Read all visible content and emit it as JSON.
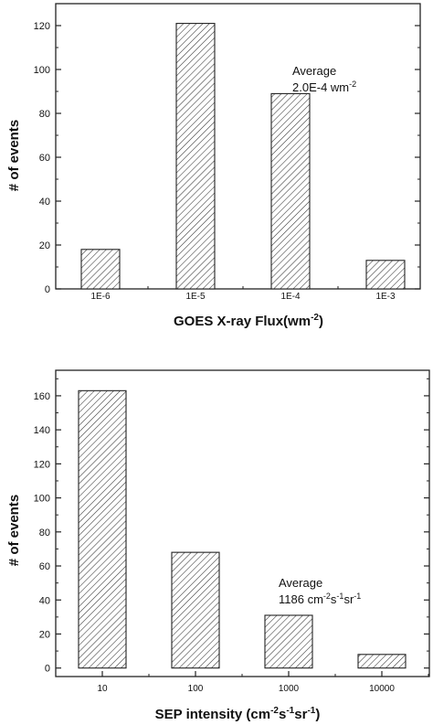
{
  "chart_data": [
    {
      "type": "bar",
      "categories": [
        "1E-6",
        "1E-5",
        "1E-4",
        "1E-3"
      ],
      "values": [
        18,
        121,
        89,
        13
      ],
      "xlabel": "GOES X-ray Flux(wm",
      "xlabel_sup": "-2",
      "xlabel_end": ")",
      "ylabel": "# of events",
      "ylim": [
        0,
        130
      ],
      "yticks": [
        0,
        20,
        40,
        60,
        80,
        100,
        120
      ],
      "annotation": {
        "line1": "Average",
        "line2_base": "2.0E-4 wm",
        "line2_sup": "-2"
      },
      "bar_fill": "diagonal-hatch",
      "grid": false
    },
    {
      "type": "bar",
      "categories": [
        "10",
        "100",
        "1000",
        "10000"
      ],
      "values": [
        163,
        68,
        31,
        8
      ],
      "xlabel": "SEP intensity (cm",
      "xlabel_sup1": "-2",
      "xlabel_mid1": "s",
      "xlabel_sup2": "-1",
      "xlabel_mid2": "sr",
      "xlabel_sup3": "-1",
      "xlabel_end": ")",
      "ylabel": "# of events",
      "ylim": [
        -5,
        175
      ],
      "yticks": [
        0,
        20,
        40,
        60,
        80,
        100,
        120,
        140,
        160
      ],
      "annotation": {
        "line1": "Average",
        "line2_base": "1186 cm",
        "line2_sup1": "-2",
        "line2_mid1": "s",
        "line2_sup2": "-1",
        "line2_mid2": "sr",
        "line2_sup3": "-1"
      },
      "bar_fill": "diagonal-hatch",
      "grid": false
    }
  ]
}
